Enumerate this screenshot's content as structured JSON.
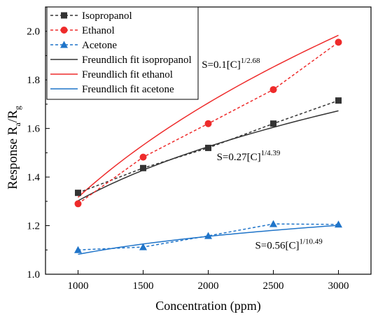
{
  "chart_data": {
    "type": "line",
    "xlabel": "Concentration (ppm)",
    "ylabel": {
      "base": "Response R",
      "sub_a": "a",
      "sep": "/R",
      "sub_b": "g"
    },
    "xlim": [
      750,
      3250
    ],
    "ylim": [
      1.0,
      2.1
    ],
    "xticks": [
      1000,
      1500,
      2000,
      2500,
      3000
    ],
    "xtick_labels": [
      "1000",
      "1500",
      "2000",
      "2500",
      "3000"
    ],
    "yticks": [
      1.0,
      1.2,
      1.4,
      1.6,
      1.8,
      2.0
    ],
    "ytick_labels": [
      "1.0",
      "1.2",
      "1.4",
      "1.6",
      "1.8",
      "2.0"
    ],
    "x": [
      1000,
      1500,
      2000,
      2500,
      3000
    ],
    "series": [
      {
        "name": "Isopropanol",
        "values": [
          1.335,
          1.437,
          1.52,
          1.62,
          1.715
        ],
        "color": "#333333",
        "marker": "square",
        "style": "dashed"
      },
      {
        "name": "Ethanol",
        "values": [
          1.29,
          1.482,
          1.62,
          1.76,
          1.955
        ],
        "color": "#ee2b2b",
        "marker": "circle",
        "style": "dashed"
      },
      {
        "name": "Acetone",
        "values": [
          1.1,
          1.112,
          1.158,
          1.207,
          1.205
        ],
        "color": "#1f74c9",
        "marker": "triangle",
        "style": "dashed"
      }
    ],
    "fits": [
      {
        "name": "Freundlich fit isopropanol",
        "color": "#333333",
        "coef": 0.27,
        "exp_den": 4.39,
        "x_range": [
          1000,
          3000
        ]
      },
      {
        "name": "Freundlich fit ethanol",
        "color": "#ee2b2b",
        "coef": 0.1,
        "exp_den": 2.68,
        "x_range": [
          1000,
          3000
        ]
      },
      {
        "name": "Freundlich fit acetone",
        "color": "#1f74c9",
        "coef": 0.56,
        "exp_den": 10.49,
        "x_range": [
          1000,
          3000
        ]
      }
    ],
    "annotations": [
      {
        "base": "S=0.1[C]",
        "sup": "1/2.68",
        "x": 1950,
        "y": 1.85
      },
      {
        "base": "S=0.27[C]",
        "sup": "1/4.39",
        "x": 2065,
        "y": 1.47
      },
      {
        "base": "S=0.56[C]",
        "sup": "1/10.49",
        "x": 2360,
        "y": 1.105
      }
    ],
    "legend_position": "top-left",
    "grid": false
  }
}
